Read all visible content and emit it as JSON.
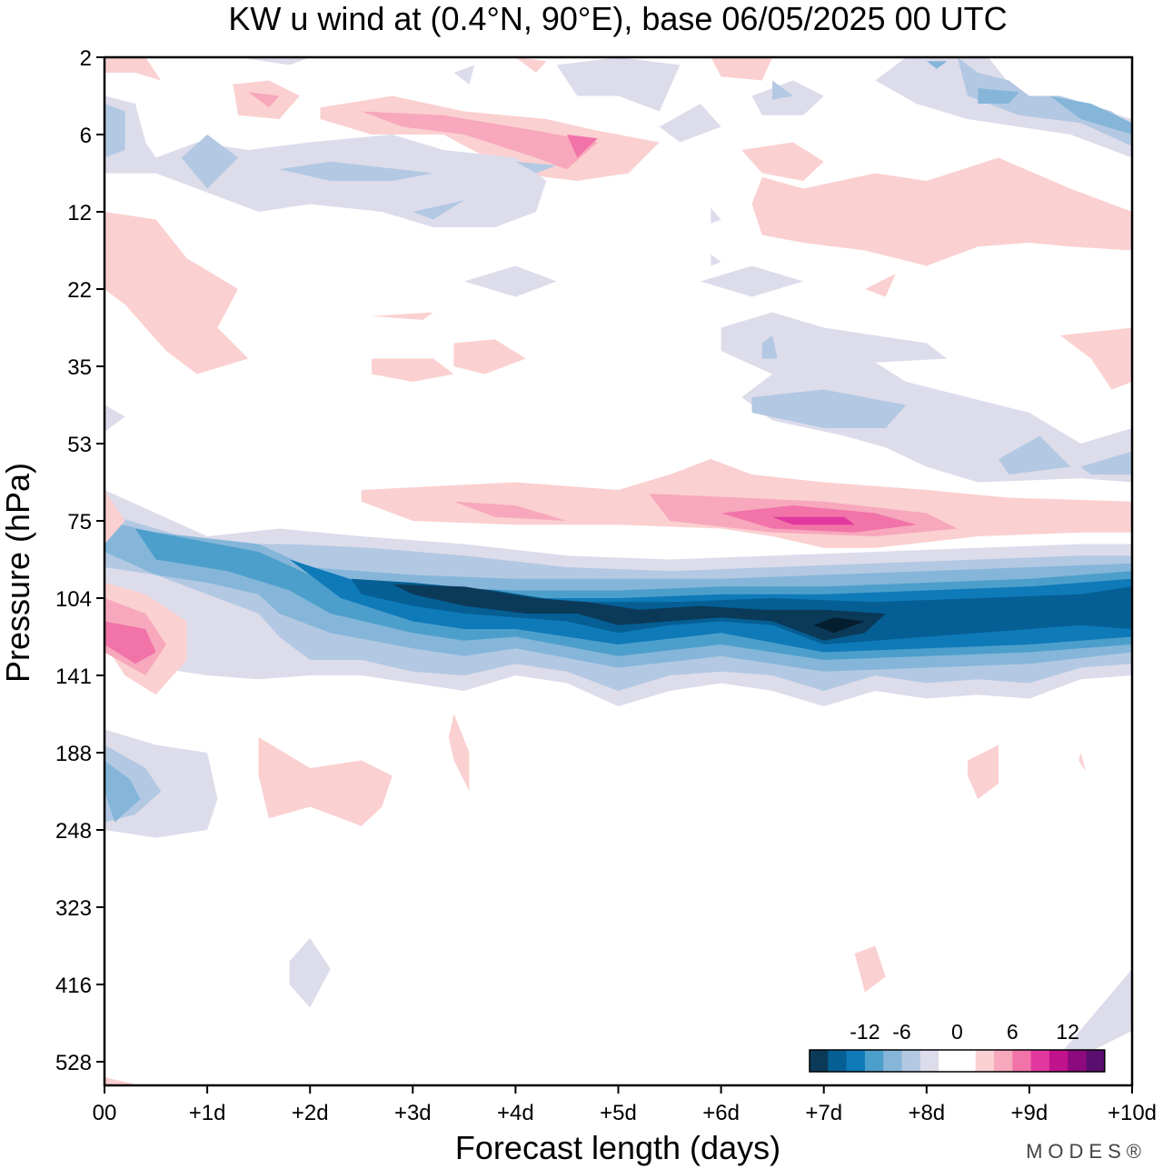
{
  "chart_data": {
    "type": "heatmap",
    "title": "KW u wind at (0.4°N, 90°E),  base 06/05/2025  00 UTC",
    "xlabel": "Forecast length (days)",
    "ylabel": "Pressure (hPa)",
    "x_ticks": [
      "00",
      "+1d",
      "+2d",
      "+3d",
      "+4d",
      "+5d",
      "+6d",
      "+7d",
      "+8d",
      "+9d",
      "+10d"
    ],
    "y_ticks": [
      "2",
      "6",
      "12",
      "22",
      "35",
      "53",
      "75",
      "104",
      "141",
      "188",
      "248",
      "323",
      "416",
      "528"
    ],
    "xlim": [
      0,
      10
    ],
    "ylim": [
      2,
      528
    ],
    "y_scale": "log-like (pressure, top = 2 hPa)",
    "colorbar": {
      "ticks": [
        "-12",
        "-6",
        "0",
        "6",
        "12"
      ],
      "levels": [
        -16,
        -14,
        -12,
        -10,
        -8,
        -6,
        -4,
        -2,
        0,
        2,
        4,
        6,
        8,
        10,
        12,
        14,
        16
      ],
      "colors": [
        "#0b3a59",
        "#055f95",
        "#0f7ab8",
        "#4d9fcb",
        "#85b6d9",
        "#b3c8e2",
        "#dcdceb",
        "#ffffff",
        "#ffffff",
        "#fbd0d0",
        "#f7a8bc",
        "#f173a8",
        "#e0389e",
        "#c0138c",
        "#8d0a7e",
        "#5a0e6e"
      ]
    },
    "features": [
      {
        "name": "easterly jet core",
        "x_range": [
          0,
          10
        ],
        "pressure_hPa": 110,
        "min_value": -16
      },
      {
        "name": "westerly maximum above jet",
        "x": 6.8,
        "pressure_hPa": 75,
        "max_value": 10
      },
      {
        "name": "westerly maximum near initial time",
        "x": 0.4,
        "pressure_hPa": 118,
        "max_value": 8
      },
      {
        "name": "easterly near surface layer",
        "x": 0.1,
        "pressure_hPa": 190,
        "min_value": -8
      }
    ]
  },
  "brand": "MODES®",
  "colors": {
    "frame": "#000000"
  }
}
